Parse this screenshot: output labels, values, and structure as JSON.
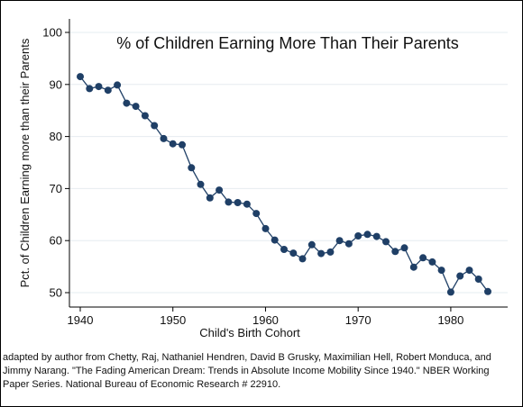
{
  "chart_data": {
    "type": "line",
    "title": "% of Children Earning More Than Their Parents",
    "xlabel": "Child's Birth Cohort",
    "ylabel": "Pct. of Children Earning more than their Parents",
    "xlim": [
      1940,
      1984
    ],
    "ylim": [
      50,
      100
    ],
    "xticks": [
      "1940",
      "1950",
      "1960",
      "1970",
      "1980"
    ],
    "yticks": [
      "50",
      "60",
      "70",
      "80",
      "90",
      "100"
    ],
    "grid": true,
    "legend": "none",
    "series": [
      {
        "x": [
          1940,
          1941,
          1942,
          1943,
          1944,
          1945,
          1946,
          1947,
          1948,
          1949,
          1950,
          1951,
          1952,
          1953,
          1954,
          1955,
          1956,
          1957,
          1958,
          1959,
          1960,
          1961,
          1962,
          1963,
          1964,
          1965,
          1966,
          1967,
          1968,
          1969,
          1970,
          1971,
          1972,
          1973,
          1974,
          1975,
          1976,
          1977,
          1978,
          1979,
          1980,
          1981,
          1982,
          1983,
          1984
        ],
        "values": [
          91.5,
          89.2,
          89.6,
          88.9,
          89.9,
          86.4,
          85.8,
          84.0,
          82.1,
          79.6,
          78.6,
          78.4,
          74.0,
          70.8,
          68.2,
          69.7,
          67.4,
          67.3,
          67.0,
          65.2,
          62.3,
          60.1,
          58.3,
          57.6,
          56.5,
          59.2,
          57.5,
          57.8,
          60.0,
          59.4,
          60.9,
          61.2,
          60.8,
          59.8,
          57.9,
          58.6,
          54.9,
          56.7,
          55.9,
          54.3,
          50.1,
          53.2,
          54.3,
          52.6,
          50.2
        ],
        "color": "#1f3f66"
      }
    ]
  },
  "source_lines": [
    "adapted by author from Chetty, Raj, Nathaniel Hendren, David B Grusky, Maximilian Hell, Robert Monduca, and",
    "Jimmy Narang. \"The Fading American Dream: Trends in Absolute Income Mobility Since 1940.\" NBER Working",
    "Paper Series. National Bureau of Economic Research # 22910."
  ]
}
